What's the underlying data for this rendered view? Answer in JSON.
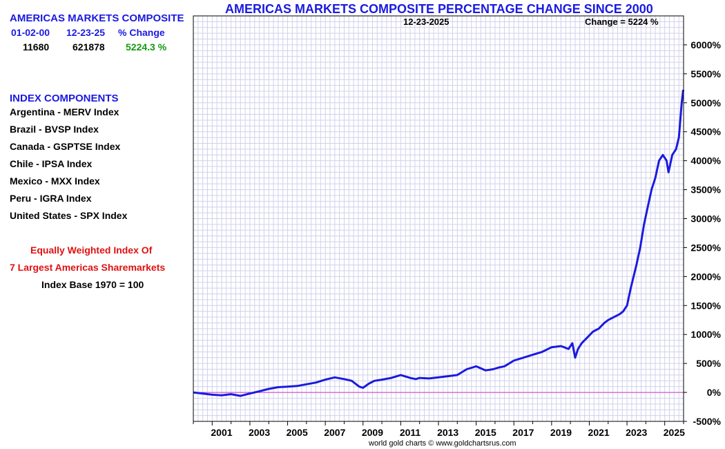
{
  "summary": {
    "title": "AMERICAS MARKETS COMPOSITE",
    "headers": [
      "01-02-00",
      "12-23-25",
      "% Change"
    ],
    "start_value": "11680",
    "end_value": "621878",
    "pct_change": "5224.3 %"
  },
  "components": {
    "heading": "INDEX COMPONENTS",
    "items": [
      "Argentina - MERV Index",
      "Brazil - BVSP Index",
      "Canada - GSPTSE Index",
      "Chile - IPSA Index",
      "Mexico - MXX Index",
      "Peru - IGRA Index",
      "United States - SPX Index"
    ]
  },
  "description": {
    "line1": "Equally Weighted Index Of",
    "line2": "7 Largest Americas Sharemarkets",
    "line3": "Index Base 1970 = 100"
  },
  "credit": "world gold charts © www.goldchartsrus.com",
  "colors": {
    "series": "#1a1ae0",
    "zero_line": "#cc33cc",
    "grid": "#d0d0ee",
    "accent_blue": "#1a1ae0",
    "positive": "#129a12",
    "note_red": "#e01010"
  },
  "chart_data": {
    "type": "line",
    "title": "AMERICAS MARKETS COMPOSITE PERCENTAGE CHANGE SINCE 2000",
    "date_label": "12-23-2025",
    "change_label": "Change = 5224 %",
    "xlabel": "",
    "ylabel": "",
    "xlim": [
      2000.0,
      2026.0
    ],
    "ylim": [
      -500,
      6500
    ],
    "y_ticks": [
      -500,
      0,
      500,
      1000,
      1500,
      2000,
      2500,
      3000,
      3500,
      4000,
      4500,
      5000,
      5500,
      6000
    ],
    "y_tick_labels": [
      "-500%",
      "0%",
      "500%",
      "1000%",
      "1500%",
      "2000%",
      "2500%",
      "3000%",
      "3500%",
      "4000%",
      "4500%",
      "5000%",
      "5500%",
      "6000%"
    ],
    "x_ticks": [
      2001,
      2003,
      2005,
      2007,
      2009,
      2011,
      2013,
      2015,
      2017,
      2019,
      2021,
      2023,
      2025
    ],
    "x_tick_labels": [
      "2001",
      "2003",
      "2005",
      "2007",
      "2009",
      "2011",
      "2013",
      "2015",
      "2017",
      "2019",
      "2021",
      "2023",
      "2025"
    ],
    "grid": true,
    "reference_line": 0,
    "series": [
      {
        "x": [
          2000.0,
          2000.5,
          2001.0,
          2001.5,
          2002.0,
          2002.5,
          2003.0,
          2003.5,
          2004.0,
          2004.5,
          2005.0,
          2005.5,
          2006.0,
          2006.5,
          2007.0,
          2007.5,
          2008.0,
          2008.4,
          2008.8,
          2009.0,
          2009.3,
          2009.6,
          2010.0,
          2010.5,
          2011.0,
          2011.5,
          2011.8,
          2012.0,
          2012.5,
          2013.0,
          2013.5,
          2014.0,
          2014.5,
          2014.8,
          2015.0,
          2015.5,
          2015.9,
          2016.2,
          2016.5,
          2017.0,
          2017.5,
          2018.0,
          2018.5,
          2019.0,
          2019.5,
          2019.9,
          2020.1,
          2020.25,
          2020.4,
          2020.6,
          2020.9,
          2021.2,
          2021.5,
          2021.8,
          2022.0,
          2022.3,
          2022.6,
          2022.8,
          2023.0,
          2023.2,
          2023.5,
          2023.7,
          2023.9,
          2024.1,
          2024.3,
          2024.5,
          2024.7,
          2024.9,
          2025.1,
          2025.2,
          2025.4,
          2025.6,
          2025.75,
          2025.9,
          2025.98
        ],
        "values": [
          0,
          -20,
          -40,
          -50,
          -30,
          -60,
          -20,
          20,
          60,
          90,
          100,
          110,
          140,
          170,
          220,
          260,
          230,
          200,
          100,
          80,
          150,
          200,
          220,
          250,
          300,
          250,
          230,
          250,
          240,
          260,
          280,
          300,
          400,
          430,
          450,
          380,
          400,
          430,
          450,
          550,
          600,
          650,
          700,
          780,
          800,
          750,
          850,
          600,
          750,
          850,
          950,
          1050,
          1100,
          1200,
          1250,
          1300,
          1350,
          1400,
          1500,
          1800,
          2200,
          2500,
          2900,
          3200,
          3500,
          3700,
          4000,
          4100,
          4000,
          3800,
          4100,
          4200,
          4400,
          5000,
          5224
        ]
      }
    ]
  }
}
